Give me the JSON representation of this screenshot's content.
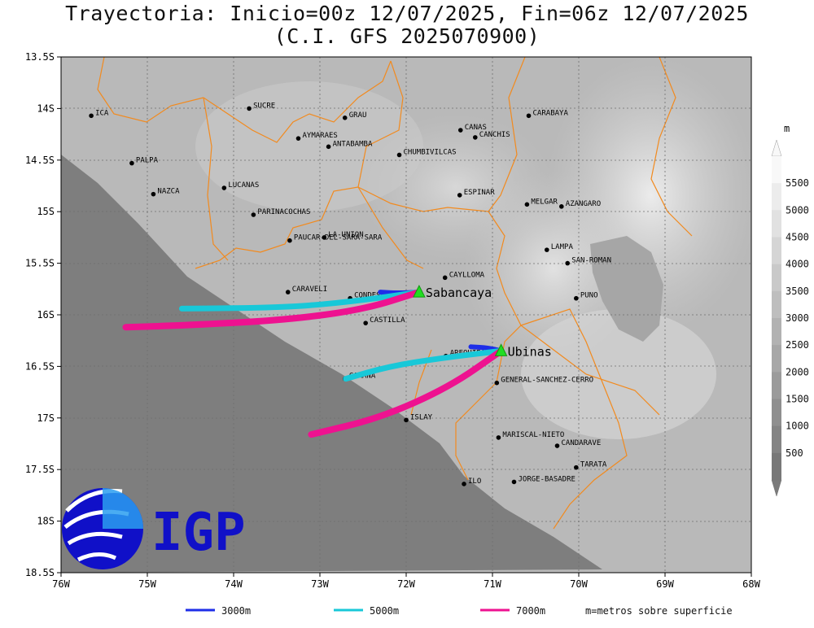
{
  "title_line1": "Trayectoria: Inicio=00z 12/07/2025, Fin=06z 12/07/2025",
  "title_line2": "(C.I. GFS 2025070900)",
  "lat_ticks": [
    "13.5S",
    "14S",
    "14.5S",
    "15S",
    "15.5S",
    "16S",
    "16.5S",
    "17S",
    "17.5S",
    "18S",
    "18.5S"
  ],
  "lon_ticks": [
    "76W",
    "75W",
    "74W",
    "73W",
    "72W",
    "71W",
    "70W",
    "69W",
    "68W"
  ],
  "colorbar": {
    "unit": "m",
    "labels": [
      "5500",
      "5000",
      "4500",
      "4000",
      "3500",
      "3000",
      "2500",
      "2000",
      "1500",
      "1000",
      "500"
    ]
  },
  "provinces": [
    {
      "name": "ICA",
      "lon": -75.65,
      "lat": -14.07
    },
    {
      "name": "SUCRE",
      "lon": -73.82,
      "lat": -14.0
    },
    {
      "name": "GRAU",
      "lon": -72.71,
      "lat": -14.09
    },
    {
      "name": "CANAS",
      "lon": -71.37,
      "lat": -14.21
    },
    {
      "name": "CANCHIS",
      "lon": -71.2,
      "lat": -14.28
    },
    {
      "name": "CARABAYA",
      "lon": -70.58,
      "lat": -14.07
    },
    {
      "name": "AYMARAES",
      "lon": -73.25,
      "lat": -14.29
    },
    {
      "name": "ANTABAMBA",
      "lon": -72.9,
      "lat": -14.37
    },
    {
      "name": "CHUMBIVILCAS",
      "lon": -72.08,
      "lat": -14.45
    },
    {
      "name": "PALPA",
      "lon": -75.18,
      "lat": -14.53
    },
    {
      "name": "LUCANAS",
      "lon": -74.11,
      "lat": -14.77
    },
    {
      "name": "ESPINAR",
      "lon": -71.38,
      "lat": -14.84
    },
    {
      "name": "NAZCA",
      "lon": -74.93,
      "lat": -14.83
    },
    {
      "name": "MELGAR",
      "lon": -70.6,
      "lat": -14.93
    },
    {
      "name": "AZANGARO",
      "lon": -70.2,
      "lat": -14.95
    },
    {
      "name": "PARINACOCHAS",
      "lon": -73.77,
      "lat": -15.03
    },
    {
      "name": "LA-UNION",
      "lon": -72.95,
      "lat": -15.25
    },
    {
      "name": "PAUCAR-DEL-SARA-SARA",
      "lon": -73.35,
      "lat": -15.28
    },
    {
      "name": "LAMPA",
      "lon": -70.37,
      "lat": -15.37
    },
    {
      "name": "SAN-ROMAN",
      "lon": -70.13,
      "lat": -15.5
    },
    {
      "name": "CAYLLOMA",
      "lon": -71.55,
      "lat": -15.64
    },
    {
      "name": "CARAVELI",
      "lon": -73.37,
      "lat": -15.78
    },
    {
      "name": "CONDESUYOS",
      "lon": -72.65,
      "lat": -15.84
    },
    {
      "name": "PUNO",
      "lon": -70.03,
      "lat": -15.84
    },
    {
      "name": "CASTILLA",
      "lon": -72.47,
      "lat": -16.08
    },
    {
      "name": "AREQUIPA",
      "lon": -71.54,
      "lat": -16.4
    },
    {
      "name": "CAMANA",
      "lon": -72.71,
      "lat": -16.62
    },
    {
      "name": "GENERAL-SANCHEZ-CERRO",
      "lon": -70.95,
      "lat": -16.66
    },
    {
      "name": "ISLAY",
      "lon": -72.0,
      "lat": -17.02
    },
    {
      "name": "MARISCAL-NIETO",
      "lon": -70.93,
      "lat": -17.19
    },
    {
      "name": "CANDARAVE",
      "lon": -70.25,
      "lat": -17.27
    },
    {
      "name": "TARATA",
      "lon": -70.03,
      "lat": -17.48
    },
    {
      "name": "ILO",
      "lon": -71.33,
      "lat": -17.64
    },
    {
      "name": "JORGE-BASADRE",
      "lon": -70.75,
      "lat": -17.62
    }
  ],
  "volcanoes": [
    {
      "name": "Sabancaya",
      "lon": -71.85,
      "lat": -15.78
    },
    {
      "name": "Ubinas",
      "lon": -70.9,
      "lat": -16.35
    }
  ],
  "trajectories": [
    {
      "height": "3000m",
      "color": "#1e2ee8",
      "volcano": "Sabancaya",
      "points": [
        [
          -71.85,
          -15.78
        ],
        [
          -72.1,
          -15.79
        ],
        [
          -72.3,
          -15.78
        ]
      ]
    },
    {
      "height": "5000m",
      "color": "#18c8d8",
      "volcano": "Sabancaya",
      "points": [
        [
          -71.85,
          -15.78
        ],
        [
          -72.6,
          -15.87
        ],
        [
          -73.4,
          -15.93
        ],
        [
          -74.6,
          -15.94
        ]
      ]
    },
    {
      "height": "7000m",
      "color": "#ee1290",
      "volcano": "Sabancaya",
      "points": [
        [
          -71.85,
          -15.78
        ],
        [
          -72.5,
          -15.95
        ],
        [
          -73.4,
          -16.05
        ],
        [
          -74.5,
          -16.1
        ],
        [
          -75.25,
          -16.12
        ]
      ]
    },
    {
      "height": "3000m",
      "color": "#1e2ee8",
      "volcano": "Ubinas",
      "points": [
        [
          -70.9,
          -16.35
        ],
        [
          -71.05,
          -16.32
        ],
        [
          -71.25,
          -16.31
        ]
      ]
    },
    {
      "height": "5000m",
      "color": "#18c8d8",
      "volcano": "Ubinas",
      "points": [
        [
          -70.9,
          -16.35
        ],
        [
          -71.6,
          -16.42
        ],
        [
          -72.2,
          -16.5
        ],
        [
          -72.7,
          -16.62
        ]
      ]
    },
    {
      "height": "7000m",
      "color": "#ee1290",
      "volcano": "Ubinas",
      "points": [
        [
          -70.9,
          -16.35
        ],
        [
          -71.5,
          -16.7
        ],
        [
          -72.3,
          -17.0
        ],
        [
          -73.1,
          -17.16
        ]
      ]
    }
  ],
  "legend": [
    {
      "label": "3000m",
      "color": "#1e2ee8"
    },
    {
      "label": "5000m",
      "color": "#18c8d8"
    },
    {
      "label": "7000m",
      "color": "#ee1290"
    }
  ],
  "legend_note": "m=metros sobre superficie",
  "logo_text": "IGP",
  "map_extent": {
    "lon_min": -76,
    "lon_max": -68,
    "lat_min": -18.5,
    "lat_max": -13.5
  }
}
